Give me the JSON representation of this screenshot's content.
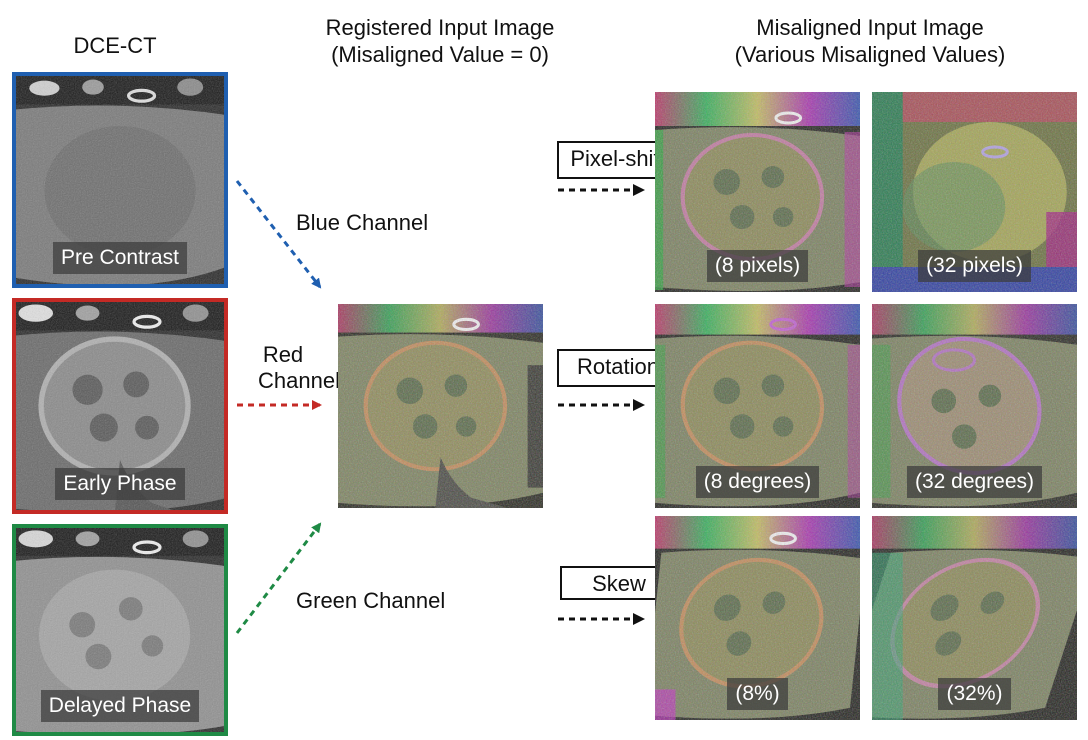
{
  "headers": {
    "dce_ct": "DCE-CT",
    "registered_line1": "Registered Input Image",
    "registered_line2": "(Misaligned Value = 0)",
    "misaligned_line1": "Misaligned Input Image",
    "misaligned_line2": "(Various Misaligned Values)"
  },
  "phases": [
    {
      "label": "Pre Contrast",
      "border_color": "#1f5fb0"
    },
    {
      "label": "Early Phase",
      "border_color": "#c42a25"
    },
    {
      "label": "Delayed Phase",
      "border_color": "#1f8a45"
    }
  ],
  "channels": {
    "blue": "Blue Channel",
    "red_line1": "Red",
    "red_line2": "Channel",
    "green": "Green Channel"
  },
  "misalignments": [
    {
      "type": "Pixel-shift",
      "small": "(8 pixels)",
      "large": "(32 pixels)"
    },
    {
      "type": "Rotation",
      "small": "(8 degrees)",
      "large": "(32 degrees)"
    },
    {
      "type": "Skew",
      "small": "(8%)",
      "large": "(32%)"
    }
  ],
  "colors": {
    "blue_arrow": "#1f5fb0",
    "red_arrow": "#c42a25",
    "green_arrow": "#1f8a45",
    "black_arrow": "#111111"
  }
}
